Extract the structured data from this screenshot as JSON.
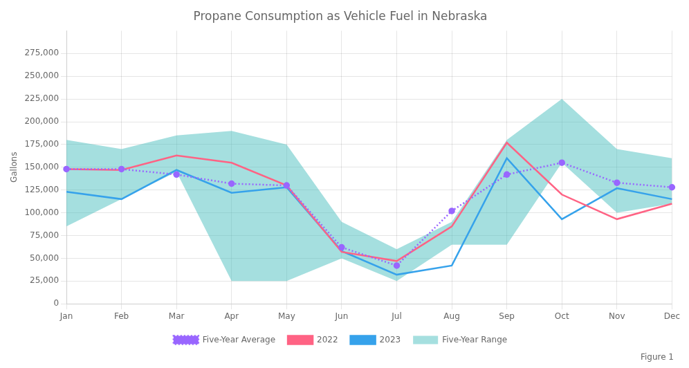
{
  "chart_data": {
    "type": "line",
    "title": "Propane Consumption as Vehicle Fuel in Nebraska",
    "y_label": "Gallons",
    "annotations": [
      "Figure 1"
    ],
    "categories": [
      "Jan",
      "Feb",
      "Mar",
      "Apr",
      "May",
      "Jun",
      "Jul",
      "Aug",
      "Sep",
      "Oct",
      "Nov",
      "Dec"
    ],
    "series": [
      {
        "name": "Five-Year Range",
        "type": "area",
        "color": "#4bc0c0",
        "low": [
          85000,
          115000,
          145000,
          25000,
          25000,
          50000,
          25000,
          65000,
          65000,
          155000,
          100000,
          110000
        ],
        "high": [
          180000,
          170000,
          185000,
          190000,
          175000,
          90000,
          60000,
          90000,
          180000,
          225000,
          170000,
          160000
        ]
      },
      {
        "name": "Five-Year Average",
        "type": "line",
        "color": "#9966ff",
        "marker": "circle",
        "line_style": "dotted",
        "values": [
          148000,
          148000,
          142000,
          132000,
          130000,
          62000,
          42000,
          102000,
          142000,
          155000,
          133000,
          128000
        ]
      },
      {
        "name": "2022",
        "type": "line",
        "color": "#ff6384",
        "line_style": "solid",
        "values": [
          148000,
          147000,
          163000,
          155000,
          130000,
          57000,
          47000,
          85000,
          177000,
          120000,
          93000,
          110000
        ]
      },
      {
        "name": "2023",
        "type": "line",
        "color": "#36a2eb",
        "line_style": "solid",
        "values": [
          123000,
          115000,
          147000,
          122000,
          128000,
          58000,
          32000,
          42000,
          160000,
          93000,
          127000,
          115000
        ]
      }
    ],
    "ylim": [
      0,
      300000
    ],
    "yticks": [
      0,
      {
        "value": 25000,
        "label": "25,000"
      },
      {
        "value": 50000,
        "label": "50,000"
      },
      {
        "value": 75000,
        "label": "75,000"
      },
      {
        "value": 100000,
        "label": "100,000"
      },
      {
        "value": 125000,
        "label": "125,000"
      },
      {
        "value": 150000,
        "label": "150,000"
      },
      {
        "value": 175000,
        "label": "175,000"
      },
      {
        "value": 200000,
        "label": "200,000"
      },
      {
        "value": 225000,
        "label": "225,000"
      },
      {
        "value": 250000,
        "label": "250,000"
      },
      {
        "value": 275000,
        "label": "275,000"
      }
    ],
    "grid": true,
    "legend": "bottom"
  }
}
